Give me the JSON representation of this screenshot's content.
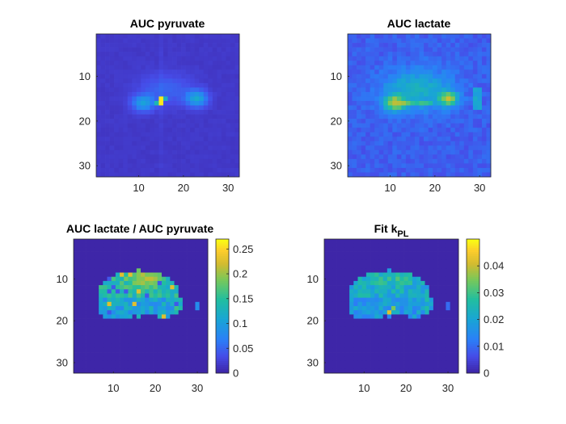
{
  "chart_data": [
    {
      "type": "heatmap",
      "title": "AUC pyruvate",
      "title_sub": "",
      "grid_size": 32,
      "colormap": "parula",
      "xticks": [
        10,
        20,
        30
      ],
      "yticks": [
        10,
        20,
        30
      ],
      "colorbar": null,
      "values": "32x32 image; low background with kidney-shaped blobs centred near rows 12-17, cols 9-25; brightest vessel near (16,15)"
    },
    {
      "type": "heatmap",
      "title": "AUC lactate",
      "title_sub": "",
      "grid_size": 32,
      "colormap": "parula",
      "xticks": [
        10,
        20,
        30
      ],
      "yticks": [
        10,
        20,
        30
      ],
      "colorbar": null,
      "values": "32x32 noisy image; elevated signal in kidney region rows 9-20, cols 7-26; bright spots near (16,11) and (15,23)"
    },
    {
      "type": "heatmap",
      "title": "AUC lactate / AUC pyruvate",
      "title_sub": "",
      "grid_size": 32,
      "colormap": "parula",
      "xticks": [
        10,
        20,
        30
      ],
      "yticks": [
        10,
        20,
        30
      ],
      "colorbar": {
        "min": 0,
        "max": 0.27,
        "ticks": [
          "0",
          "0.05",
          "0.1",
          "0.15",
          "0.2",
          "0.25"
        ]
      },
      "values": "32x32 masked ratio map; zero outside kidney mask; values 0.05-0.27 inside, highest near top of mask"
    },
    {
      "type": "heatmap",
      "title": "Fit k",
      "title_sub": "PL",
      "grid_size": 32,
      "colormap": "parula",
      "xticks": [
        10,
        20,
        30
      ],
      "yticks": [
        10,
        20,
        30
      ],
      "colorbar": {
        "min": 0,
        "max": 0.05,
        "ticks": [
          "0",
          "0.01",
          "0.02",
          "0.03",
          "0.04"
        ]
      },
      "values": "32x32 masked kPL map; zero outside mask; values mostly 0.01-0.03, peak ~0.045 near (19,17)"
    }
  ]
}
